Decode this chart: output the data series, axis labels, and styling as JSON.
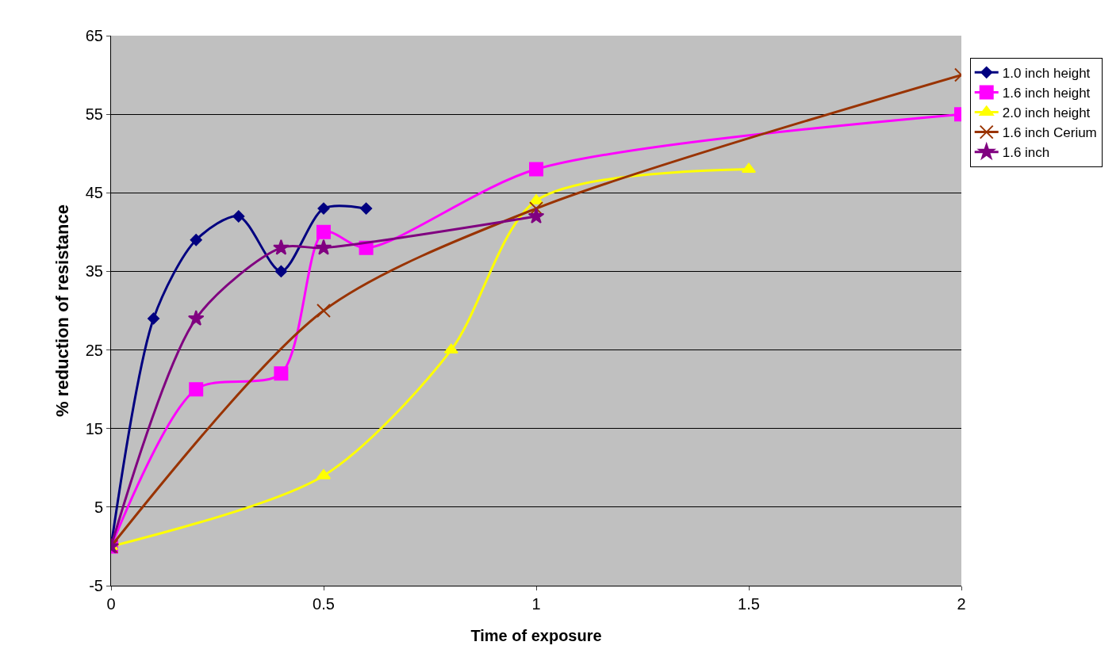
{
  "chart_data": {
    "type": "line",
    "xlabel": "Time of exposure",
    "ylabel": "% reduction of resistance",
    "xlim": [
      0,
      2
    ],
    "xticks": [
      0,
      0.5,
      1,
      1.5,
      2
    ],
    "ylim": [
      -5,
      65
    ],
    "yticks": [
      -5,
      5,
      15,
      25,
      35,
      45,
      55,
      65
    ],
    "grid": "y",
    "legend": "top right",
    "series": [
      {
        "name": "1.0 inch height",
        "color": "#000080",
        "marker": "diamond",
        "x": [
          0,
          0.1,
          0.2,
          0.3,
          0.4,
          0.5,
          0.6
        ],
        "values": [
          0,
          29,
          39,
          42,
          35,
          43,
          43
        ]
      },
      {
        "name": "1.6 inch height",
        "color": "#ff00ff",
        "marker": "square",
        "x": [
          0,
          0.2,
          0.4,
          0.5,
          0.6,
          1,
          2
        ],
        "values": [
          0,
          20,
          22,
          40,
          38,
          48,
          55
        ]
      },
      {
        "name": "2.0 inch height",
        "color": "#ffff00",
        "marker": "triangle",
        "x": [
          0,
          0.5,
          0.8,
          1,
          1.5
        ],
        "values": [
          0,
          9,
          25,
          44,
          48
        ]
      },
      {
        "name": "1.6 inch Cerium",
        "color": "#993300",
        "marker": "cross",
        "x": [
          0,
          0.5,
          1,
          2
        ],
        "values": [
          0,
          30,
          43,
          60
        ]
      },
      {
        "name": "1.6 inch",
        "color": "#800080",
        "marker": "star",
        "x": [
          0,
          0.2,
          0.4,
          0.5,
          1
        ],
        "values": [
          0,
          29,
          38,
          38,
          42
        ]
      }
    ]
  }
}
